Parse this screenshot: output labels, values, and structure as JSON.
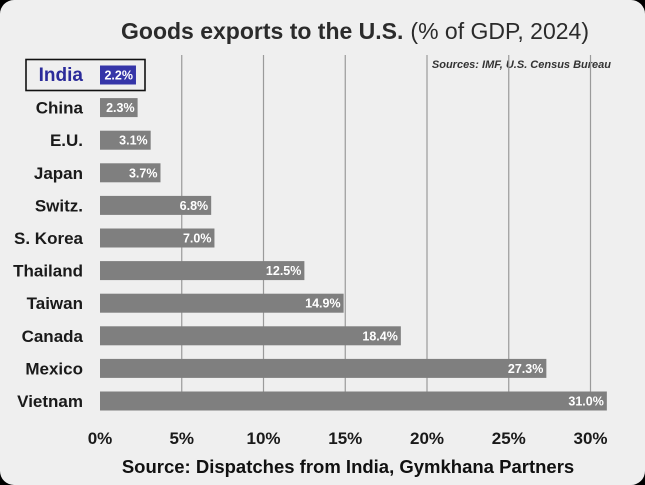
{
  "chart_data": {
    "type": "bar",
    "orientation": "horizontal",
    "title": "Goods exports to the U.S.",
    "subtitle": "(% of GDP, 2024)",
    "sources_note": "Sources: IMF, U.S. Census Bureau",
    "footer": "Source: Dispatches from India, Gymkhana Partners",
    "categories": [
      "India",
      "China",
      "E.U.",
      "Japan",
      "Switz.",
      "S. Korea",
      "Thailand",
      "Taiwan",
      "Canada",
      "Mexico",
      "Vietnam"
    ],
    "values": [
      2.2,
      2.3,
      3.1,
      3.7,
      6.8,
      7.0,
      12.5,
      14.9,
      18.4,
      27.3,
      31.0
    ],
    "value_labels": [
      "2.2%",
      "2.3%",
      "3.1%",
      "3.7%",
      "6.8%",
      "7.0%",
      "12.5%",
      "14.9%",
      "18.4%",
      "27.3%",
      "31.0%"
    ],
    "highlight": "India",
    "xlim": [
      0,
      31
    ],
    "xticks": [
      0,
      5,
      10,
      15,
      20,
      25,
      30
    ],
    "xtick_labels": [
      "0%",
      "5%",
      "10%",
      "15%",
      "20%",
      "25%",
      "30%"
    ],
    "grid": true,
    "colors": {
      "bar": "#7f7f7f",
      "highlight_bar": "#3535a8",
      "highlight_text": "#2b2b9a",
      "background": "#efefef",
      "grid": "#9a9a9a"
    }
  }
}
